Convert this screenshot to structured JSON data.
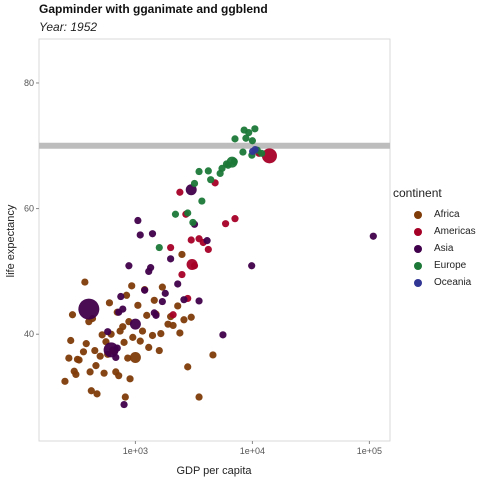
{
  "chart_data": {
    "type": "scatter",
    "title": "Gapminder with gganimate and ggblend",
    "subtitle": "Year: 1952",
    "xlabel": "GDP per capita",
    "ylabel": "life expectancy",
    "x_scale": "log10",
    "xlim": [
      150,
      150000
    ],
    "ylim": [
      23,
      87
    ],
    "x_ticks": [
      1000,
      10000,
      100000
    ],
    "x_tick_labels": [
      "1e+03",
      "1e+04",
      "1e+05"
    ],
    "y_ticks": [
      40,
      60,
      80
    ],
    "y_tick_labels": [
      "40",
      "60",
      "80"
    ],
    "grid": false,
    "reference_line": {
      "y": 70,
      "color": "#bdbdbd"
    },
    "legend": {
      "title": "continent",
      "position": "right",
      "entries": [
        {
          "name": "Africa",
          "color": "#7f3b08"
        },
        {
          "name": "Americas",
          "color": "#a50026"
        },
        {
          "name": "Asia",
          "color": "#40004b"
        },
        {
          "name": "Europe",
          "color": "#1b7837"
        },
        {
          "name": "Oceania",
          "color": "#313695"
        }
      ]
    },
    "series": [
      {
        "name": "Africa",
        "color": "#7f3b08",
        "points": [
          [
            250,
            32.5,
            1
          ],
          [
            270,
            36.2,
            1
          ],
          [
            280,
            39,
            1
          ],
          [
            290,
            43.1,
            1
          ],
          [
            300,
            34.1,
            1
          ],
          [
            310,
            33.6,
            1
          ],
          [
            320,
            36,
            1
          ],
          [
            330,
            35.9,
            1
          ],
          [
            360,
            37.2,
            1
          ],
          [
            370,
            48.3,
            1
          ],
          [
            380,
            38.5,
            1
          ],
          [
            400,
            42,
            1
          ],
          [
            410,
            34,
            1
          ],
          [
            420,
            31,
            1
          ],
          [
            430,
            42.5,
            1
          ],
          [
            450,
            37.4,
            1
          ],
          [
            460,
            35,
            1
          ],
          [
            470,
            30.5,
            1
          ],
          [
            500,
            36.5,
            1
          ],
          [
            520,
            39.9,
            1
          ],
          [
            540,
            33.8,
            1
          ],
          [
            560,
            38.8,
            1
          ],
          [
            580,
            36.8,
            1
          ],
          [
            600,
            45,
            1
          ],
          [
            620,
            40,
            1
          ],
          [
            640,
            37.5,
            1
          ],
          [
            660,
            37.2,
            1
          ],
          [
            680,
            34,
            1
          ],
          [
            700,
            43.5,
            1
          ],
          [
            720,
            33.4,
            1
          ],
          [
            740,
            40.5,
            1
          ],
          [
            780,
            41.2,
            1
          ],
          [
            800,
            38.7,
            1
          ],
          [
            820,
            30,
            1
          ],
          [
            840,
            46.2,
            1
          ],
          [
            860,
            36.2,
            1
          ],
          [
            880,
            42,
            1
          ],
          [
            900,
            32.9,
            1
          ],
          [
            930,
            47.7,
            1
          ],
          [
            950,
            39.5,
            1
          ],
          [
            1000,
            36.3,
            2
          ],
          [
            1050,
            44.6,
            1
          ],
          [
            1100,
            38.9,
            1
          ],
          [
            1150,
            40.5,
            1
          ],
          [
            1200,
            47.1,
            1
          ],
          [
            1250,
            43,
            1
          ],
          [
            1300,
            37.9,
            1
          ],
          [
            1400,
            39.8,
            1
          ],
          [
            1450,
            45.4,
            1
          ],
          [
            1500,
            43.2,
            1
          ],
          [
            1600,
            37.4,
            1
          ],
          [
            1650,
            40.1,
            1
          ],
          [
            1700,
            47.5,
            1
          ],
          [
            1900,
            41.6,
            1
          ],
          [
            2000,
            42.8,
            1
          ],
          [
            2100,
            41.4,
            1
          ],
          [
            2300,
            44.5,
            1
          ],
          [
            2400,
            40.2,
            1
          ],
          [
            2500,
            52.7,
            1
          ],
          [
            2600,
            42.3,
            1
          ],
          [
            2800,
            34.8,
            1
          ],
          [
            3000,
            42.7,
            1
          ],
          [
            3500,
            30,
            1
          ],
          [
            4600,
            36.7,
            1
          ]
        ]
      },
      {
        "name": "Americas",
        "color": "#a50026",
        "points": [
          [
            2400,
            62.6,
            1
          ],
          [
            2500,
            49.5,
            1
          ],
          [
            2700,
            59.1,
            1
          ],
          [
            2800,
            45.7,
            1
          ],
          [
            3000,
            55,
            1
          ],
          [
            3050,
            51.1,
            2
          ],
          [
            3200,
            50.9,
            1
          ],
          [
            3500,
            55.2,
            1
          ],
          [
            3800,
            54.6,
            1
          ],
          [
            4200,
            53.5,
            1
          ],
          [
            4800,
            64.1,
            1
          ],
          [
            5900,
            57.6,
            1
          ],
          [
            7100,
            58.4,
            1
          ],
          [
            11400,
            68.8,
            1
          ],
          [
            13990,
            68.4,
            3
          ],
          [
            2000,
            53.8,
            1
          ],
          [
            2100,
            43.1,
            1
          ]
        ]
      },
      {
        "name": "Asia",
        "color": "#40004b",
        "points": [
          [
            400,
            44,
            4
          ],
          [
            580,
            40.4,
            1
          ],
          [
            620,
            37.5,
            3
          ],
          [
            680,
            36.3,
            1
          ],
          [
            700,
            37.8,
            1
          ],
          [
            720,
            43.5,
            1
          ],
          [
            750,
            46,
            1
          ],
          [
            780,
            44,
            1
          ],
          [
            800,
            28.8,
            1
          ],
          [
            880,
            50.9,
            1
          ],
          [
            1000,
            41.6,
            2
          ],
          [
            1050,
            58.1,
            1
          ],
          [
            1100,
            55.8,
            1
          ],
          [
            1200,
            47,
            1
          ],
          [
            1300,
            50,
            1
          ],
          [
            1350,
            50.6,
            1
          ],
          [
            1400,
            56,
            1
          ],
          [
            1450,
            43.4,
            1
          ],
          [
            1500,
            43,
            1
          ],
          [
            1700,
            45.2,
            1
          ],
          [
            1800,
            46.5,
            1
          ],
          [
            2000,
            52,
            1
          ],
          [
            2300,
            48,
            1
          ],
          [
            2600,
            45.5,
            1
          ],
          [
            3000,
            63,
            2
          ],
          [
            3200,
            57.5,
            1
          ],
          [
            3500,
            45.3,
            1
          ],
          [
            4100,
            54.9,
            1
          ],
          [
            5600,
            39.9,
            1
          ],
          [
            9860,
            50.9,
            1
          ],
          [
            108000,
            55.6,
            1
          ]
        ]
      },
      {
        "name": "Europe",
        "color": "#1b7837",
        "points": [
          [
            1600,
            53.8,
            1
          ],
          [
            2200,
            59.1,
            1
          ],
          [
            2800,
            59.3,
            1
          ],
          [
            3100,
            57.8,
            1
          ],
          [
            3200,
            64,
            1
          ],
          [
            3500,
            65.9,
            1
          ],
          [
            3700,
            61.2,
            1
          ],
          [
            4200,
            66,
            1
          ],
          [
            4400,
            64.6,
            1
          ],
          [
            5300,
            65.6,
            1
          ],
          [
            5500,
            66.4,
            1
          ],
          [
            6000,
            67.1,
            1
          ],
          [
            6200,
            66.9,
            1
          ],
          [
            6700,
            67.4,
            2
          ],
          [
            7000,
            67.5,
            1
          ],
          [
            7100,
            71.1,
            1
          ],
          [
            8300,
            69,
            1
          ],
          [
            8500,
            72.5,
            1
          ],
          [
            8800,
            71.2,
            1
          ],
          [
            9300,
            72.1,
            1
          ],
          [
            9900,
            68.5,
            1
          ],
          [
            10000,
            70.8,
            1
          ],
          [
            10500,
            72.7,
            1
          ],
          [
            11000,
            69.3,
            1
          ],
          [
            12000,
            68.8,
            1
          ]
        ]
      },
      {
        "name": "Oceania",
        "color": "#313695",
        "points": [
          [
            10040,
            69.1,
            1
          ],
          [
            10560,
            69.4,
            1
          ]
        ]
      }
    ]
  }
}
